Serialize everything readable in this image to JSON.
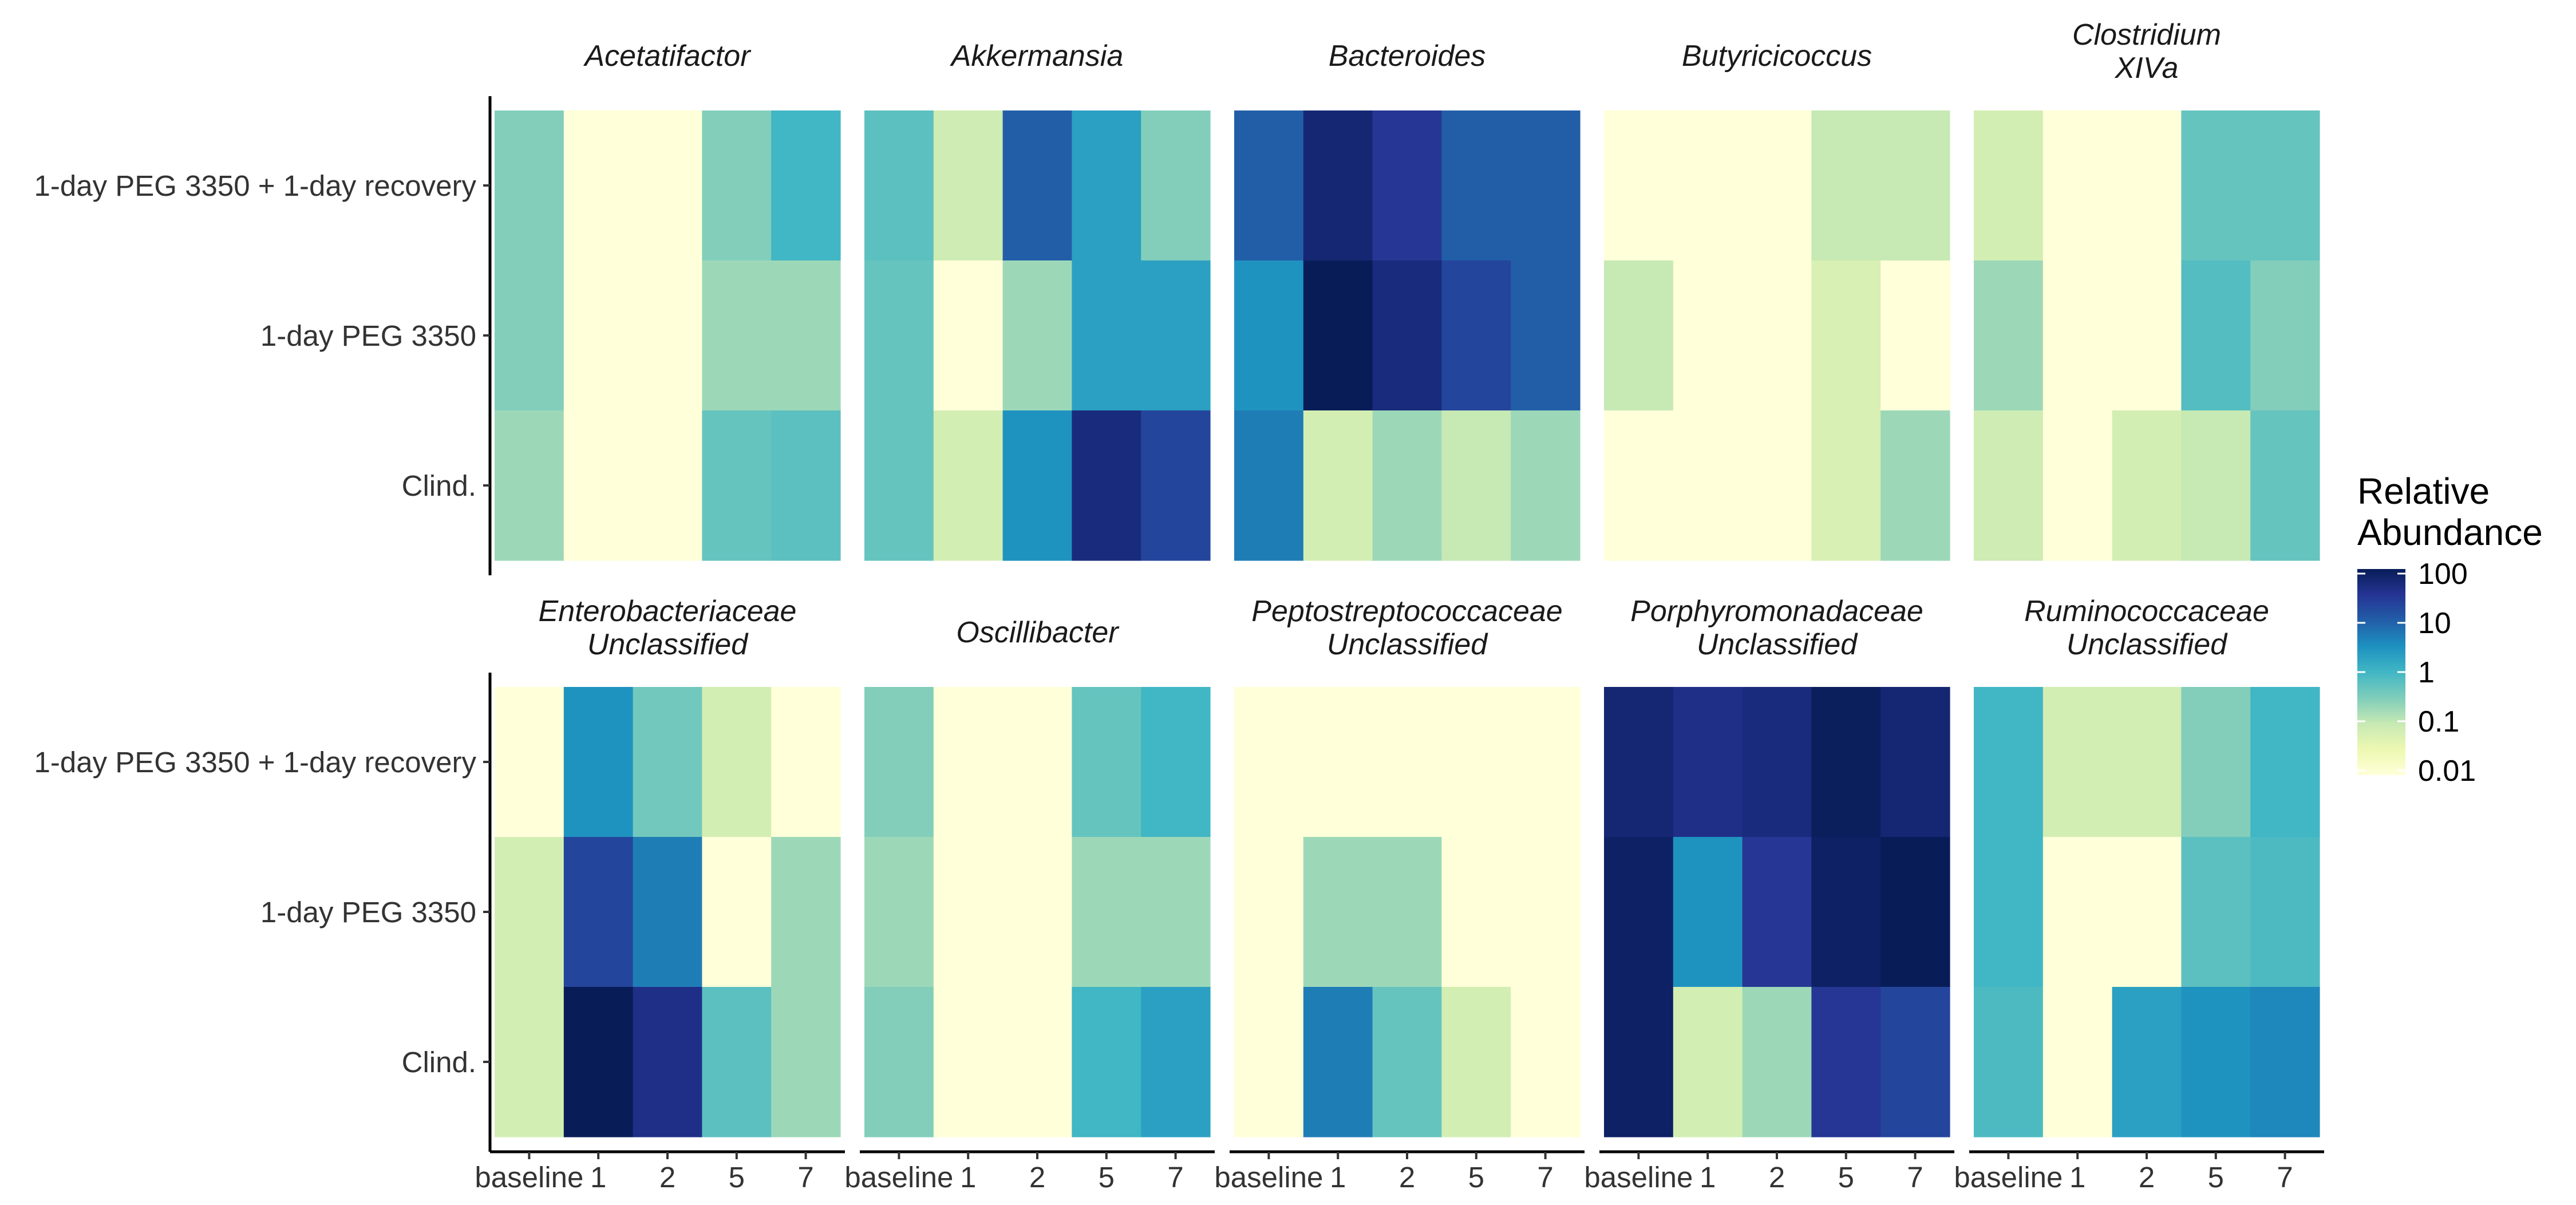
{
  "chart_data": {
    "type": "heatmap",
    "facets": [
      {
        "title": [
          "Acetatifactor"
        ],
        "values": [
          [
            0.3,
            0.01,
            0.01,
            0.3,
            1
          ],
          [
            0.3,
            0.01,
            0.01,
            0.2,
            0.2
          ],
          [
            0.2,
            0.01,
            0.01,
            0.5,
            0.6
          ]
        ]
      },
      {
        "title": [
          "Akkermansia"
        ],
        "values": [
          [
            0.6,
            0.08,
            10,
            2,
            0.3
          ],
          [
            0.5,
            0.01,
            0.2,
            2,
            2
          ],
          [
            0.5,
            0.07,
            3,
            50,
            20
          ]
        ]
      },
      {
        "title": [
          "Bacteroides"
        ],
        "values": [
          [
            10,
            60,
            30,
            10,
            10
          ],
          [
            3,
            100,
            50,
            20,
            10
          ],
          [
            5,
            0.07,
            0.2,
            0.1,
            0.2
          ]
        ]
      },
      {
        "title": [
          "Butyricicoccus"
        ],
        "values": [
          [
            0.01,
            0.01,
            0.01,
            0.1,
            0.1
          ],
          [
            0.1,
            0.01,
            0.01,
            0.06,
            0.01
          ],
          [
            0.01,
            0.01,
            0.01,
            0.06,
            0.2
          ]
        ]
      },
      {
        "title": [
          "Clostridium",
          "XIVa"
        ],
        "values": [
          [
            0.07,
            0.01,
            0.01,
            0.5,
            0.5
          ],
          [
            0.2,
            0.01,
            0.01,
            0.7,
            0.3
          ],
          [
            0.08,
            0.01,
            0.07,
            0.1,
            0.5
          ]
        ]
      },
      {
        "title": [
          "Enterobacteriaceae",
          "Unclassified"
        ],
        "values": [
          [
            0.01,
            3,
            0.4,
            0.07,
            0.01
          ],
          [
            0.07,
            20,
            5,
            0.01,
            0.2
          ],
          [
            0.07,
            100,
            40,
            0.6,
            0.2
          ]
        ]
      },
      {
        "title": [
          "Oscillibacter"
        ],
        "values": [
          [
            0.3,
            0.01,
            0.01,
            0.5,
            1
          ],
          [
            0.2,
            0.01,
            0.01,
            0.2,
            0.2
          ],
          [
            0.3,
            0.01,
            0.01,
            1,
            2
          ]
        ]
      },
      {
        "title": [
          "Peptostreptococcaceae",
          "Unclassified"
        ],
        "values": [
          [
            0.01,
            0.01,
            0.01,
            0.01,
            0.01
          ],
          [
            0.01,
            0.2,
            0.2,
            0.01,
            0.01
          ],
          [
            0.01,
            5,
            0.5,
            0.07,
            0.01
          ]
        ]
      },
      {
        "title": [
          "Porphyromonadaceae",
          "Unclassified"
        ],
        "values": [
          [
            60,
            40,
            50,
            90,
            60
          ],
          [
            80,
            3,
            30,
            80,
            100
          ],
          [
            80,
            0.07,
            0.2,
            30,
            20
          ]
        ]
      },
      {
        "title": [
          "Ruminococcaceae",
          "Unclassified"
        ],
        "values": [
          [
            1,
            0.07,
            0.07,
            0.3,
            1
          ],
          [
            1,
            0.01,
            0.01,
            0.6,
            0.8
          ],
          [
            0.8,
            0.01,
            2,
            3,
            4
          ]
        ]
      }
    ],
    "x_categories": [
      "baseline",
      "1",
      "2",
      "5",
      "7"
    ],
    "y_categories": [
      "1-day PEG 3350 + 1-day recovery",
      "1-day PEG 3350",
      "Clind."
    ],
    "color_scale": {
      "title": [
        "Relative",
        "Abundance"
      ],
      "scale": "log10",
      "ticks": [
        100,
        10,
        1,
        0.1,
        0.01
      ],
      "tick_labels": [
        "100",
        "10",
        "1",
        "0.1",
        "0.01"
      ],
      "range": [
        0.01,
        100
      ],
      "palette": "YlGnBu",
      "stops": [
        "#ffffd9",
        "#edf8b1",
        "#c7e9b4",
        "#7fcdbb",
        "#41b6c4",
        "#1d91c0",
        "#225ea8",
        "#253494",
        "#081d58"
      ]
    },
    "grid": false,
    "legend_position": "right",
    "facet_layout": "2 rows x 5 columns"
  }
}
